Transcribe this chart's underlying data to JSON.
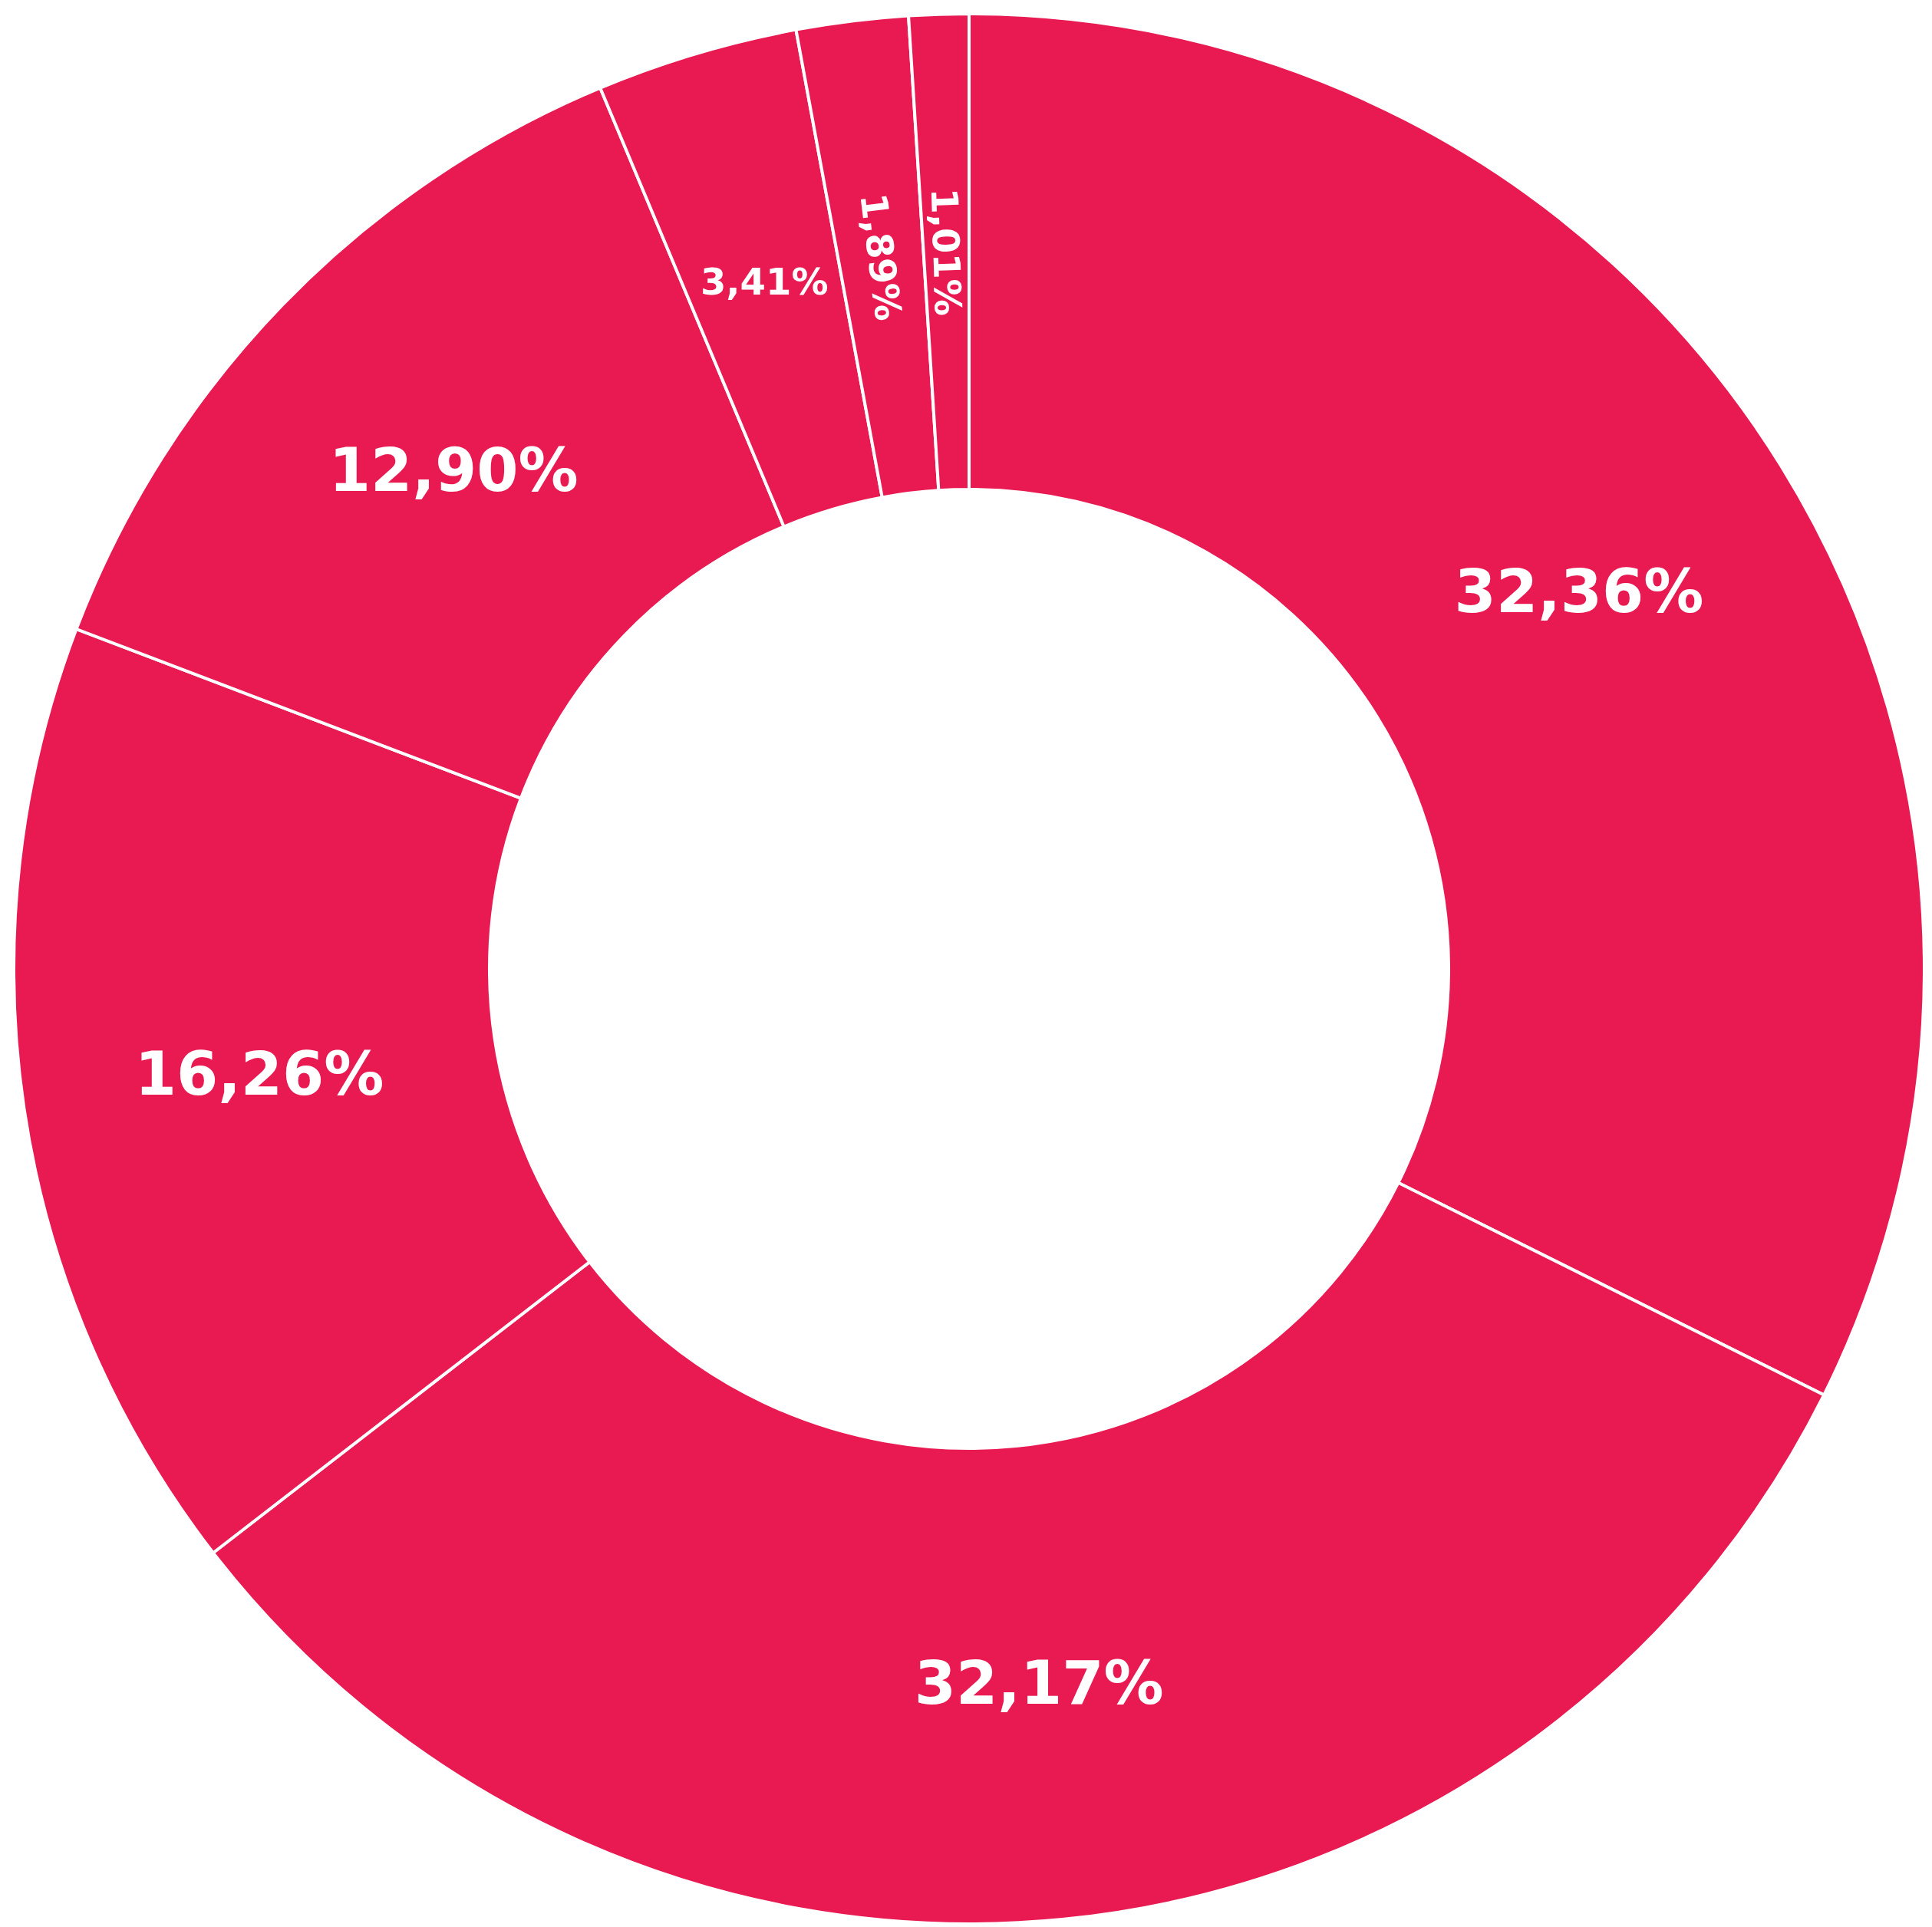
{
  "chart_data": {
    "type": "donut",
    "categories": [
      null,
      null,
      null,
      null,
      null,
      null,
      null
    ],
    "values": [
      32.36,
      32.17,
      16.26,
      12.9,
      3.41,
      1.89,
      1.01
    ],
    "value_labels": [
      "32,36%",
      "32,17%",
      "16,26%",
      "12,90%",
      "3,41%",
      "1,89%",
      "1,01%"
    ],
    "colors": [
      "#e91a52",
      "#e91a52",
      "#e91a52",
      "#e91a52",
      "#e91a52",
      "#e91a52",
      "#e91a52"
    ],
    "legend": false
  }
}
